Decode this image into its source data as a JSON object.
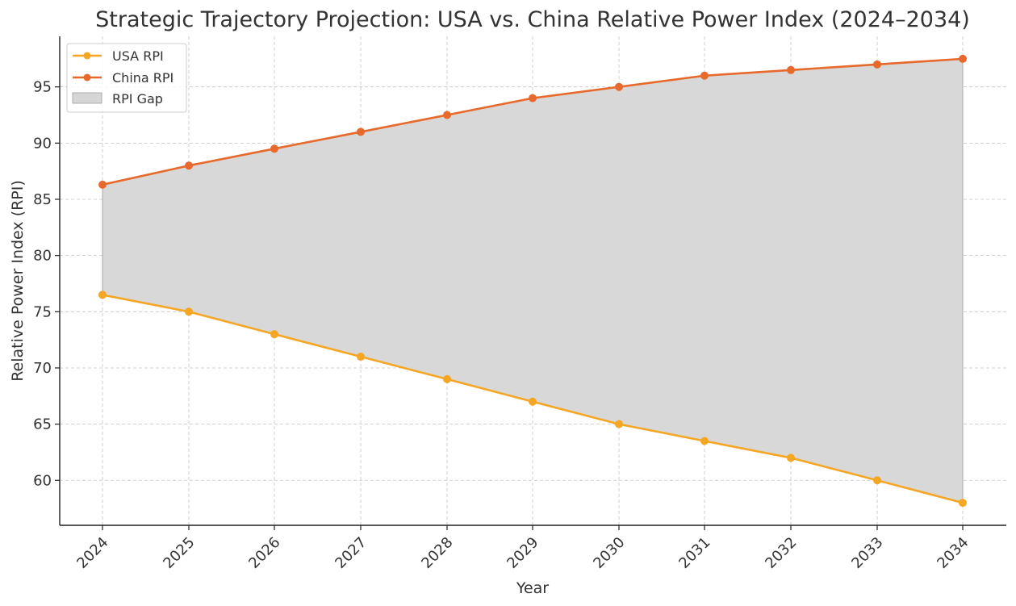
{
  "chart_data": {
    "type": "line",
    "title": "Strategic Trajectory Projection: USA vs. China Relative Power Index (2024–2034)",
    "xlabel": "Year",
    "ylabel": "Relative Power Index (RPI)",
    "categories": [
      "2024",
      "2025",
      "2026",
      "2027",
      "2028",
      "2029",
      "2030",
      "2031",
      "2032",
      "2033",
      "2034"
    ],
    "x": [
      2024,
      2025,
      2026,
      2027,
      2028,
      2029,
      2030,
      2031,
      2032,
      2033,
      2034
    ],
    "ylim": [
      56,
      99.5
    ],
    "yticks": [
      60,
      65,
      70,
      75,
      80,
      85,
      90,
      95
    ],
    "grid": true,
    "legend_position": "top-left",
    "series": [
      {
        "name": "USA RPI",
        "color": "#f5a623",
        "values": [
          76.5,
          75,
          73,
          71,
          69,
          67,
          65,
          63.5,
          62,
          60,
          58
        ]
      },
      {
        "name": "China RPI",
        "color": "#e8692c",
        "values": [
          86.3,
          88,
          89.5,
          91,
          92.5,
          94,
          95,
          96,
          96.5,
          97,
          97.5
        ]
      }
    ],
    "fill_between": {
      "name": "RPI Gap",
      "color": "#d6d6d6",
      "edge_color": "#9e9e9e"
    }
  }
}
